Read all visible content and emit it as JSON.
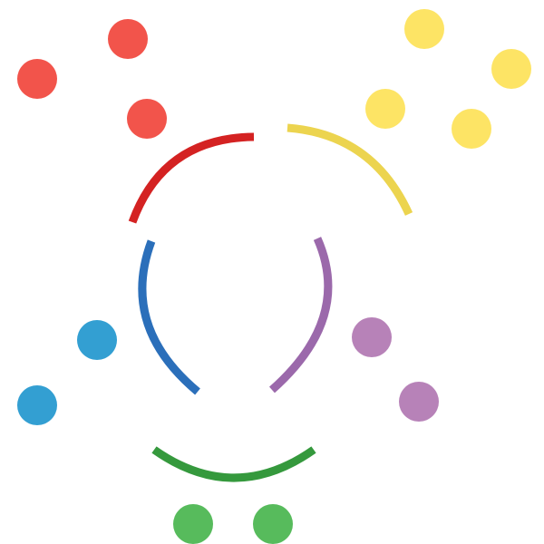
{
  "diagram": {
    "background": "#ffffff",
    "groups": [
      {
        "key": "red",
        "arc_color": "#d42222",
        "dot_color": "#f2544b",
        "dot_count": 3
      },
      {
        "key": "yellow",
        "arc_color": "#ecd44f",
        "dot_color": "#fde465",
        "dot_count": 4
      },
      {
        "key": "blue",
        "arc_color": "#2b6fba",
        "dot_color": "#339fd2",
        "dot_count": 2
      },
      {
        "key": "purple",
        "arc_color": "#9b69ab",
        "dot_color": "#b782b8",
        "dot_count": 2
      },
      {
        "key": "green",
        "arc_color": "#35993d",
        "dot_color": "#57bb5c",
        "dot_count": 2
      }
    ]
  }
}
